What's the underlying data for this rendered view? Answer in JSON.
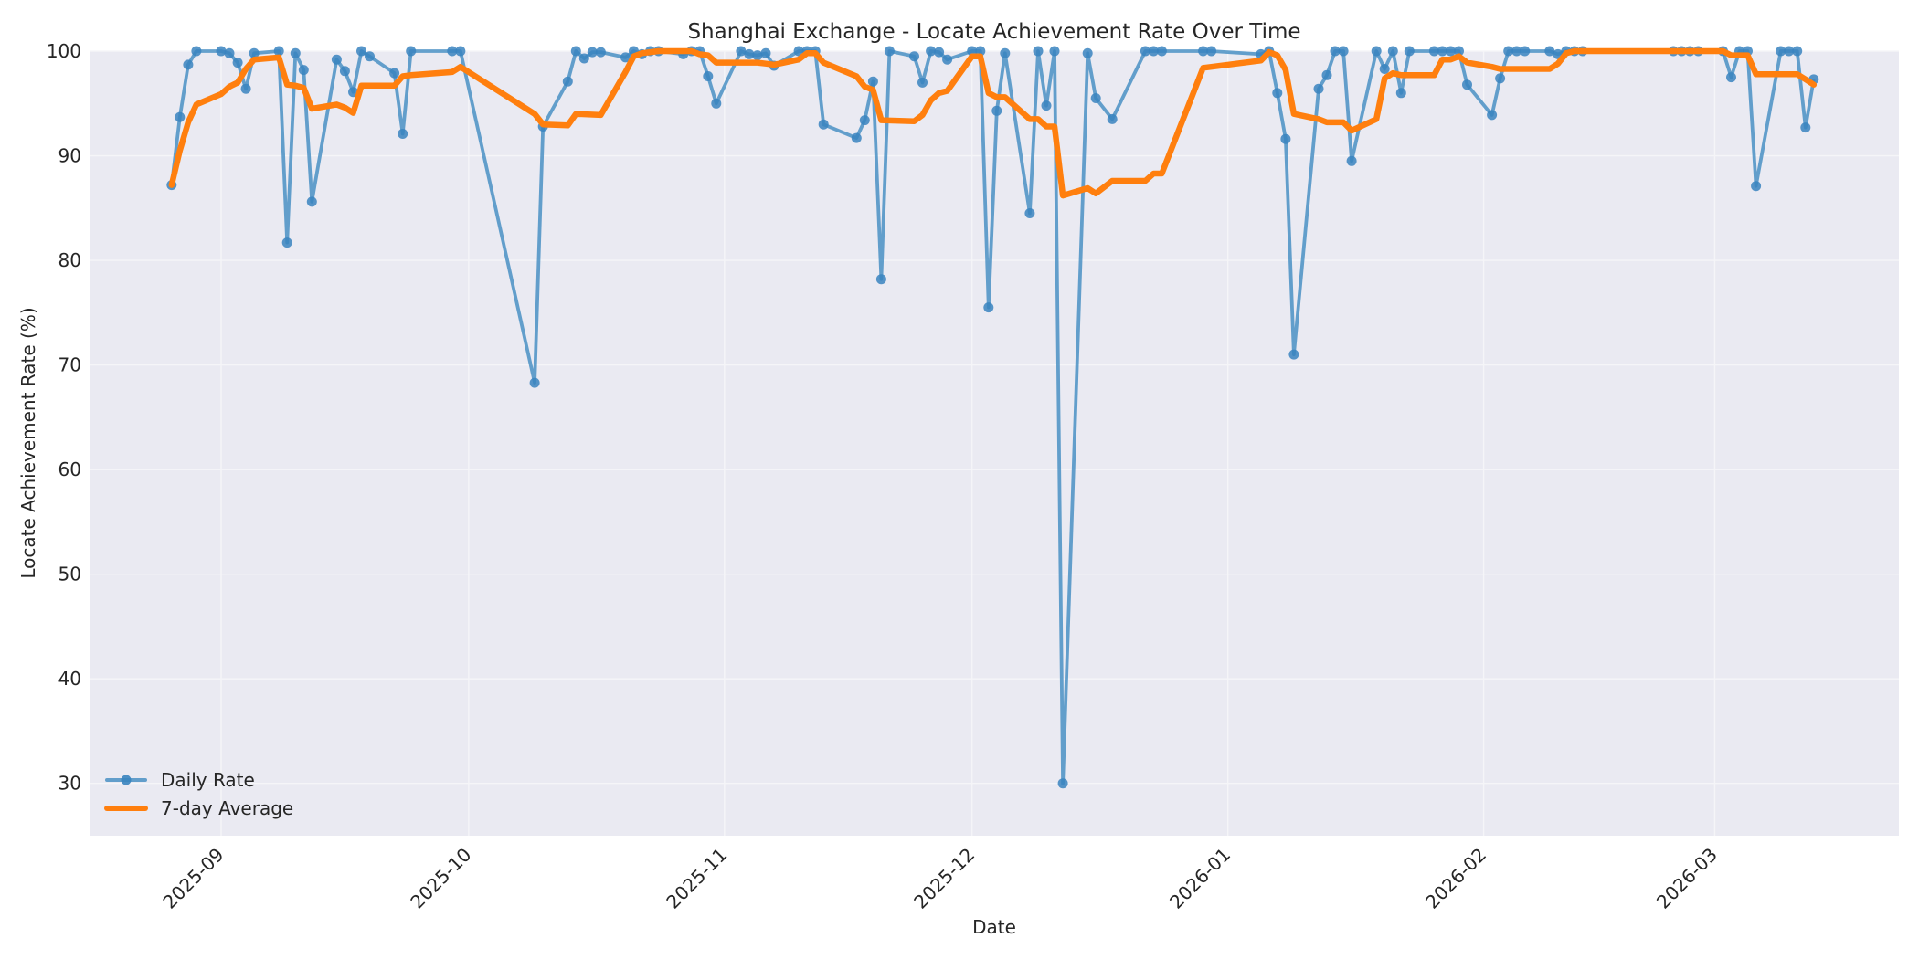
{
  "chart_data": {
    "type": "line",
    "title": "Shanghai Exchange - Locate Achievement Rate Over Time",
    "xlabel": "Date",
    "ylabel": "Locate Achievement Rate (%)",
    "ylim": [
      25,
      100
    ],
    "yticks": [
      30,
      40,
      50,
      60,
      70,
      80,
      90,
      100
    ],
    "xticks": [
      "2025-09",
      "2025-10",
      "2025-11",
      "2025-12",
      "2026-01",
      "2026-02",
      "2026-03"
    ],
    "xlim": [
      "2025-08-16",
      "2026-03-20"
    ],
    "grid": true,
    "legend_position": "lower left",
    "colors": {
      "daily": "#4a90c4",
      "average": "#ff7f0e",
      "background": "#eaeaf2",
      "grid": "#f5f5f8"
    },
    "series": [
      {
        "name": "Daily Rate",
        "style": "line-marker",
        "points": [
          [
            "2025-08-26",
            87.2
          ],
          [
            "2025-08-27",
            93.7
          ],
          [
            "2025-08-28",
            98.7
          ],
          [
            "2025-08-29",
            100.0
          ],
          [
            "2025-09-01",
            100.0
          ],
          [
            "2025-09-02",
            99.8
          ],
          [
            "2025-09-03",
            98.9
          ],
          [
            "2025-09-04",
            96.4
          ],
          [
            "2025-09-05",
            99.8
          ],
          [
            "2025-09-08",
            100.0
          ],
          [
            "2025-09-09",
            81.7
          ],
          [
            "2025-09-10",
            99.8
          ],
          [
            "2025-09-11",
            98.2
          ],
          [
            "2025-09-12",
            85.6
          ],
          [
            "2025-09-15",
            99.2
          ],
          [
            "2025-09-16",
            98.1
          ],
          [
            "2025-09-17",
            96.1
          ],
          [
            "2025-09-18",
            100.0
          ],
          [
            "2025-09-19",
            99.5
          ],
          [
            "2025-09-22",
            97.9
          ],
          [
            "2025-09-23",
            92.1
          ],
          [
            "2025-09-24",
            100.0
          ],
          [
            "2025-09-29",
            100.0
          ],
          [
            "2025-09-30",
            100.0
          ],
          [
            "2025-10-09",
            68.3
          ],
          [
            "2025-10-10",
            92.8
          ],
          [
            "2025-10-13",
            97.1
          ],
          [
            "2025-10-14",
            100.0
          ],
          [
            "2025-10-15",
            99.3
          ],
          [
            "2025-10-16",
            99.9
          ],
          [
            "2025-10-17",
            99.9
          ],
          [
            "2025-10-20",
            99.4
          ],
          [
            "2025-10-21",
            100.0
          ],
          [
            "2025-10-22",
            99.7
          ],
          [
            "2025-10-23",
            100.0
          ],
          [
            "2025-10-24",
            100.0
          ],
          [
            "2025-10-27",
            99.7
          ],
          [
            "2025-10-28",
            100.0
          ],
          [
            "2025-10-29",
            100.0
          ],
          [
            "2025-10-30",
            97.6
          ],
          [
            "2025-10-31",
            95.0
          ],
          [
            "2025-11-03",
            100.0
          ],
          [
            "2025-11-04",
            99.7
          ],
          [
            "2025-11-05",
            99.6
          ],
          [
            "2025-11-06",
            99.8
          ],
          [
            "2025-11-07",
            98.6
          ],
          [
            "2025-11-10",
            100.0
          ],
          [
            "2025-11-11",
            100.0
          ],
          [
            "2025-11-12",
            100.0
          ],
          [
            "2025-11-13",
            93.0
          ],
          [
            "2025-11-17",
            91.7
          ],
          [
            "2025-11-18",
            93.4
          ],
          [
            "2025-11-19",
            97.1
          ],
          [
            "2025-11-20",
            78.2
          ],
          [
            "2025-11-21",
            100.0
          ],
          [
            "2025-11-24",
            99.5
          ],
          [
            "2025-11-25",
            97.0
          ],
          [
            "2025-11-26",
            100.0
          ],
          [
            "2025-11-27",
            99.9
          ],
          [
            "2025-11-28",
            99.2
          ],
          [
            "2025-12-01",
            100.0
          ],
          [
            "2025-12-02",
            100.0
          ],
          [
            "2025-12-03",
            75.5
          ],
          [
            "2025-12-04",
            94.3
          ],
          [
            "2025-12-05",
            99.8
          ],
          [
            "2025-12-08",
            84.5
          ],
          [
            "2025-12-09",
            100.0
          ],
          [
            "2025-12-10",
            94.8
          ],
          [
            "2025-12-11",
            100.0
          ],
          [
            "2025-12-12",
            30.0
          ],
          [
            "2025-12-15",
            99.8
          ],
          [
            "2025-12-16",
            95.5
          ],
          [
            "2025-12-18",
            93.5
          ],
          [
            "2025-12-22",
            100.0
          ],
          [
            "2025-12-23",
            100.0
          ],
          [
            "2025-12-24",
            100.0
          ],
          [
            "2025-12-29",
            100.0
          ],
          [
            "2025-12-30",
            100.0
          ],
          [
            "2026-01-05",
            99.7
          ],
          [
            "2026-01-06",
            100.0
          ],
          [
            "2026-01-07",
            96.0
          ],
          [
            "2026-01-08",
            91.6
          ],
          [
            "2026-01-09",
            71.0
          ],
          [
            "2026-01-12",
            96.4
          ],
          [
            "2026-01-13",
            97.7
          ],
          [
            "2026-01-14",
            100.0
          ],
          [
            "2026-01-15",
            100.0
          ],
          [
            "2026-01-16",
            89.5
          ],
          [
            "2026-01-19",
            100.0
          ],
          [
            "2026-01-20",
            98.3
          ],
          [
            "2026-01-21",
            100.0
          ],
          [
            "2026-01-22",
            96.0
          ],
          [
            "2026-01-23",
            100.0
          ],
          [
            "2026-01-26",
            100.0
          ],
          [
            "2026-01-27",
            100.0
          ],
          [
            "2026-01-28",
            100.0
          ],
          [
            "2026-01-29",
            100.0
          ],
          [
            "2026-01-30",
            96.8
          ],
          [
            "2026-02-02",
            93.9
          ],
          [
            "2026-02-03",
            97.4
          ],
          [
            "2026-02-04",
            100.0
          ],
          [
            "2026-02-05",
            100.0
          ],
          [
            "2026-02-06",
            100.0
          ],
          [
            "2026-02-09",
            100.0
          ],
          [
            "2026-02-10",
            99.7
          ],
          [
            "2026-02-11",
            100.0
          ],
          [
            "2026-02-12",
            100.0
          ],
          [
            "2026-02-13",
            100.0
          ],
          [
            "2026-02-24",
            100.0
          ],
          [
            "2026-02-25",
            100.0
          ],
          [
            "2026-02-26",
            100.0
          ],
          [
            "2026-02-27",
            100.0
          ],
          [
            "2026-03-02",
            100.0
          ],
          [
            "2026-03-03",
            97.5
          ],
          [
            "2026-03-04",
            100.0
          ],
          [
            "2026-03-05",
            100.0
          ],
          [
            "2026-03-06",
            87.1
          ],
          [
            "2026-03-09",
            100.0
          ],
          [
            "2026-03-10",
            100.0
          ],
          [
            "2026-03-11",
            100.0
          ],
          [
            "2026-03-12",
            92.7
          ],
          [
            "2026-03-13",
            97.3
          ]
        ]
      },
      {
        "name": "7-day Average",
        "style": "line",
        "points": [
          [
            "2025-08-26",
            87.2
          ],
          [
            "2025-08-27",
            90.5
          ],
          [
            "2025-08-28",
            93.2
          ],
          [
            "2025-08-29",
            94.9
          ],
          [
            "2025-09-01",
            95.9
          ],
          [
            "2025-09-02",
            96.6
          ],
          [
            "2025-09-03",
            97.0
          ],
          [
            "2025-09-04",
            98.3
          ],
          [
            "2025-09-05",
            99.2
          ],
          [
            "2025-09-08",
            99.4
          ],
          [
            "2025-09-09",
            96.8
          ],
          [
            "2025-09-10",
            96.7
          ],
          [
            "2025-09-11",
            96.5
          ],
          [
            "2025-09-12",
            94.5
          ],
          [
            "2025-09-15",
            94.9
          ],
          [
            "2025-09-16",
            94.6
          ],
          [
            "2025-09-17",
            94.1
          ],
          [
            "2025-09-18",
            96.7
          ],
          [
            "2025-09-19",
            96.7
          ],
          [
            "2025-09-22",
            96.7
          ],
          [
            "2025-09-23",
            97.6
          ],
          [
            "2025-09-24",
            97.7
          ],
          [
            "2025-09-29",
            98.0
          ],
          [
            "2025-09-30",
            98.5
          ],
          [
            "2025-10-09",
            94.0
          ],
          [
            "2025-10-10",
            93.0
          ],
          [
            "2025-10-13",
            92.9
          ],
          [
            "2025-10-14",
            94.0
          ],
          [
            "2025-10-17",
            93.9
          ],
          [
            "2025-10-20",
            98.0
          ],
          [
            "2025-10-21",
            99.5
          ],
          [
            "2025-10-22",
            99.8
          ],
          [
            "2025-10-24",
            100.0
          ],
          [
            "2025-10-28",
            100.0
          ],
          [
            "2025-10-29",
            99.7
          ],
          [
            "2025-10-30",
            99.6
          ],
          [
            "2025-10-31",
            98.9
          ],
          [
            "2025-11-05",
            98.9
          ],
          [
            "2025-11-06",
            98.8
          ],
          [
            "2025-11-07",
            98.7
          ],
          [
            "2025-11-10",
            99.2
          ],
          [
            "2025-11-11",
            99.8
          ],
          [
            "2025-11-12",
            99.8
          ],
          [
            "2025-11-13",
            98.9
          ],
          [
            "2025-11-17",
            97.6
          ],
          [
            "2025-11-18",
            96.6
          ],
          [
            "2025-11-19",
            96.3
          ],
          [
            "2025-11-20",
            93.4
          ],
          [
            "2025-11-24",
            93.3
          ],
          [
            "2025-11-25",
            93.9
          ],
          [
            "2025-11-26",
            95.3
          ],
          [
            "2025-11-27",
            96.0
          ],
          [
            "2025-11-28",
            96.2
          ],
          [
            "2025-12-01",
            99.5
          ],
          [
            "2025-12-02",
            99.5
          ],
          [
            "2025-12-03",
            96.0
          ],
          [
            "2025-12-04",
            95.6
          ],
          [
            "2025-12-05",
            95.6
          ],
          [
            "2025-12-08",
            93.5
          ],
          [
            "2025-12-09",
            93.5
          ],
          [
            "2025-12-10",
            92.8
          ],
          [
            "2025-12-11",
            92.8
          ],
          [
            "2025-12-12",
            86.2
          ],
          [
            "2025-12-15",
            86.9
          ],
          [
            "2025-12-16",
            86.4
          ],
          [
            "2025-12-18",
            87.6
          ],
          [
            "2025-12-22",
            87.6
          ],
          [
            "2025-12-23",
            88.3
          ],
          [
            "2025-12-24",
            88.3
          ],
          [
            "2025-12-29",
            98.4
          ],
          [
            "2025-12-30",
            98.5
          ],
          [
            "2026-01-05",
            99.1
          ],
          [
            "2026-01-06",
            99.9
          ],
          [
            "2026-01-07",
            99.6
          ],
          [
            "2026-01-08",
            98.2
          ],
          [
            "2026-01-09",
            94.0
          ],
          [
            "2026-01-12",
            93.5
          ],
          [
            "2026-01-13",
            93.2
          ],
          [
            "2026-01-14",
            93.2
          ],
          [
            "2026-01-15",
            93.2
          ],
          [
            "2026-01-16",
            92.4
          ],
          [
            "2026-01-19",
            93.5
          ],
          [
            "2026-01-20",
            97.4
          ],
          [
            "2026-01-21",
            97.9
          ],
          [
            "2026-01-22",
            97.7
          ],
          [
            "2026-01-23",
            97.7
          ],
          [
            "2026-01-26",
            97.7
          ],
          [
            "2026-01-27",
            99.2
          ],
          [
            "2026-01-28",
            99.2
          ],
          [
            "2026-01-29",
            99.5
          ],
          [
            "2026-01-30",
            98.9
          ],
          [
            "2026-02-02",
            98.5
          ],
          [
            "2026-02-03",
            98.3
          ],
          [
            "2026-02-09",
            98.3
          ],
          [
            "2026-02-10",
            98.8
          ],
          [
            "2026-02-11",
            99.8
          ],
          [
            "2026-02-12",
            100.0
          ],
          [
            "2026-02-27",
            100.0
          ],
          [
            "2026-03-02",
            100.0
          ],
          [
            "2026-03-03",
            99.6
          ],
          [
            "2026-03-05",
            99.6
          ],
          [
            "2026-03-06",
            97.8
          ],
          [
            "2026-03-11",
            97.8
          ],
          [
            "2026-03-12",
            97.3
          ],
          [
            "2026-03-13",
            96.8
          ]
        ]
      }
    ]
  },
  "legend": {
    "daily_label": "Daily Rate",
    "average_label": "7-day Average"
  }
}
